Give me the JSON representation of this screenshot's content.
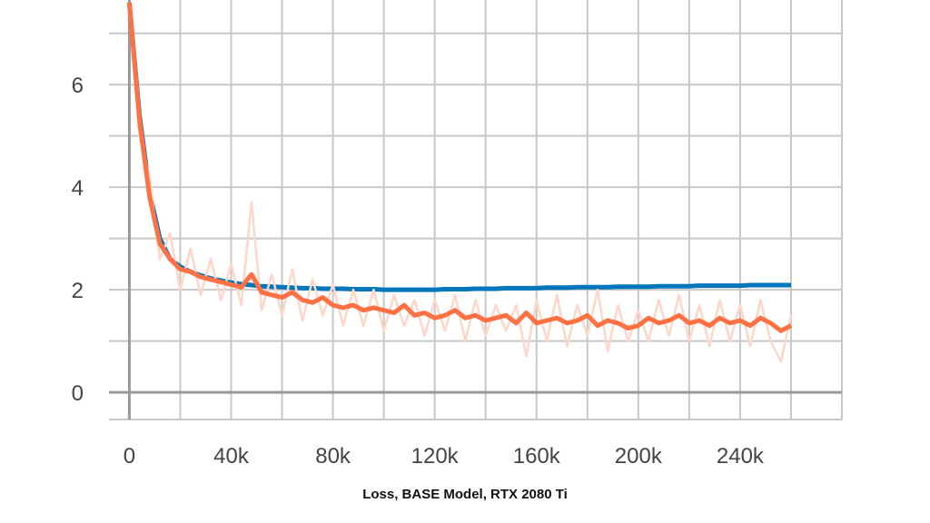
{
  "chart_data": {
    "type": "line",
    "title": "Loss, BASE Model, RTX 2080 Ti",
    "xlabel": "",
    "ylabel": "",
    "xlim": [
      -8000,
      280000
    ],
    "ylim": [
      -0.53,
      7.65
    ],
    "grid": true,
    "x_ticks": [
      0,
      40000,
      80000,
      120000,
      160000,
      200000,
      240000
    ],
    "x_tick_labels": [
      "0",
      "40k",
      "80k",
      "120k",
      "160k",
      "200k",
      "240k"
    ],
    "y_ticks": [
      0,
      2,
      4,
      6
    ],
    "y_tick_labels": [
      "0",
      "2",
      "4",
      "6"
    ],
    "x_start": 0,
    "x_step": 4000,
    "series": [
      {
        "name": "blue",
        "color": "#0077bb",
        "values": [
          7.6,
          5.4,
          3.9,
          3.0,
          2.6,
          2.45,
          2.35,
          2.28,
          2.22,
          2.18,
          2.14,
          2.11,
          2.09,
          2.07,
          2.06,
          2.05,
          2.04,
          2.03,
          2.03,
          2.02,
          2.02,
          2.02,
          2.01,
          2.01,
          2.01,
          2.0,
          2.0,
          2.0,
          2.0,
          2.0,
          2.0,
          2.01,
          2.01,
          2.01,
          2.02,
          2.02,
          2.02,
          2.03,
          2.03,
          2.03,
          2.03,
          2.04,
          2.04,
          2.04,
          2.05,
          2.05,
          2.05,
          2.05,
          2.06,
          2.06,
          2.06,
          2.06,
          2.07,
          2.07,
          2.07,
          2.07,
          2.08,
          2.08,
          2.08,
          2.08,
          2.08,
          2.09,
          2.09,
          2.09,
          2.09,
          2.09
        ]
      },
      {
        "name": "orange-raw",
        "color": "#ffd6c8",
        "values": [
          7.6,
          5.0,
          4.2,
          2.6,
          3.1,
          2.0,
          2.8,
          1.9,
          2.6,
          1.8,
          2.5,
          1.7,
          3.7,
          1.6,
          2.3,
          1.5,
          2.4,
          1.4,
          2.2,
          1.5,
          2.1,
          1.3,
          2.0,
          1.3,
          2.0,
          1.2,
          1.9,
          1.3,
          1.8,
          1.1,
          1.8,
          1.2,
          1.9,
          1.0,
          1.8,
          1.1,
          1.7,
          1.2,
          1.7,
          0.7,
          1.8,
          1.0,
          1.9,
          0.9,
          1.7,
          1.1,
          2.0,
          0.8,
          1.7,
          1.0,
          1.6,
          1.0,
          1.8,
          1.1,
          1.9,
          1.0,
          1.7,
          0.9,
          1.8,
          1.0,
          1.7,
          0.9,
          1.8,
          1.0,
          0.6,
          1.5
        ]
      },
      {
        "name": "orange",
        "color": "#ff7043",
        "values": [
          7.6,
          5.3,
          3.8,
          2.9,
          2.6,
          2.4,
          2.35,
          2.25,
          2.2,
          2.15,
          2.1,
          2.05,
          2.3,
          1.95,
          1.9,
          1.85,
          1.95,
          1.8,
          1.75,
          1.85,
          1.7,
          1.65,
          1.7,
          1.6,
          1.65,
          1.6,
          1.55,
          1.7,
          1.5,
          1.55,
          1.45,
          1.5,
          1.6,
          1.45,
          1.5,
          1.4,
          1.45,
          1.5,
          1.35,
          1.55,
          1.35,
          1.4,
          1.45,
          1.35,
          1.4,
          1.5,
          1.3,
          1.4,
          1.35,
          1.25,
          1.3,
          1.45,
          1.35,
          1.4,
          1.5,
          1.35,
          1.4,
          1.3,
          1.45,
          1.35,
          1.4,
          1.3,
          1.45,
          1.35,
          1.2,
          1.3
        ]
      }
    ]
  }
}
